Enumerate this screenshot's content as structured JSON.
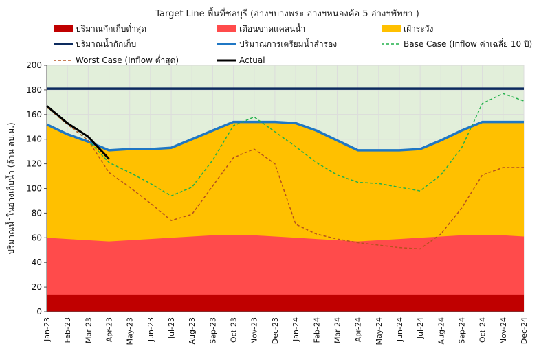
{
  "chart_data": {
    "type": "area",
    "title": "Target Line พื้นที่ชลบุรี (อ่างฯบางพระ อ่างฯหนองค้อ 5 อ่างฯพัทยา )",
    "ylabel": "ปริมาณน้ำในอ่างเก็บน้ำ (ล้าน ลบ.ม.)",
    "xlabel": "",
    "ylim": [
      0,
      200
    ],
    "yticks": [
      0,
      20,
      40,
      60,
      80,
      100,
      120,
      140,
      160,
      180,
      200
    ],
    "grid": true,
    "legend_position": "top",
    "x": [
      "Jan-23",
      "Feb-23",
      "Mar-23",
      "Apr-23",
      "May-23",
      "Jun-23",
      "Jul-23",
      "Aug-23",
      "Sep-23",
      "Oct-23",
      "Nov-23",
      "Dec-23",
      "Jan-24",
      "Feb-24",
      "Mar-24",
      "Apr-24",
      "May-24",
      "Jun-24",
      "Jul-24",
      "Aug-24",
      "Sep-24",
      "Oct-24",
      "Nov-24",
      "Dec-24"
    ],
    "series": [
      {
        "name": "ปริมาณกักเก็บต่ำสุด",
        "kind": "area",
        "color": "#C00000",
        "values": [
          14,
          14,
          14,
          14,
          14,
          14,
          14,
          14,
          14,
          14,
          14,
          14,
          14,
          14,
          14,
          14,
          14,
          14,
          14,
          14,
          14,
          14,
          14,
          14
        ]
      },
      {
        "name": "เตือนขาดแคลนน้ำ",
        "kind": "area",
        "color": "#FF4B4B",
        "values": [
          60,
          59,
          58,
          57,
          58,
          59,
          60,
          61,
          62,
          62,
          62,
          61,
          60,
          59,
          58,
          57,
          58,
          59,
          60,
          61,
          62,
          62,
          62,
          61
        ]
      },
      {
        "name": "เฝ้าระวัง",
        "kind": "area",
        "color": "#FFC000",
        "values": [
          152,
          144,
          138,
          131,
          132,
          132,
          133,
          140,
          147,
          154,
          154,
          154,
          153,
          147,
          139,
          131,
          131,
          131,
          132,
          139,
          147,
          154,
          154,
          154
        ]
      },
      {
        "name": "ปริมาณน้ำกักเก็บ",
        "kind": "line",
        "color": "#0D2B5E",
        "values": [
          181,
          181,
          181,
          181,
          181,
          181,
          181,
          181,
          181,
          181,
          181,
          181,
          181,
          181,
          181,
          181,
          181,
          181,
          181,
          181,
          181,
          181,
          181,
          181
        ]
      },
      {
        "name": "ปริมาณการเตรียมน้ำสำรอง",
        "kind": "line",
        "color": "#1F77C4",
        "values": [
          152,
          144,
          138,
          131,
          132,
          132,
          133,
          140,
          147,
          154,
          154,
          154,
          153,
          147,
          139,
          131,
          131,
          131,
          132,
          139,
          147,
          154,
          154,
          154
        ]
      },
      {
        "name": "Base Case (Inflow ค่าเฉลี่ย 10 ปี)",
        "kind": "dashed",
        "color": "#22B04B",
        "values": [
          166,
          152,
          139,
          121,
          113,
          104,
          94,
          101,
          123,
          151,
          158,
          146,
          134,
          121,
          111,
          105,
          104,
          101,
          98,
          111,
          133,
          169,
          177,
          171
        ]
      },
      {
        "name": "Worst Case (Inflow ต่ำสุด)",
        "kind": "dashed",
        "color": "#B5521E",
        "values": [
          166,
          152,
          139,
          113,
          101,
          88,
          74,
          79,
          102,
          125,
          132,
          120,
          71,
          63,
          59,
          56,
          54,
          52,
          51,
          63,
          84,
          111,
          117,
          117
        ]
      },
      {
        "name": "Actual",
        "kind": "line",
        "color": "#000000",
        "x": [
          "Jan-23",
          "Feb-23",
          "Mar-23",
          "Apr-23"
        ],
        "values": [
          167,
          153,
          142,
          124
        ]
      }
    ]
  }
}
